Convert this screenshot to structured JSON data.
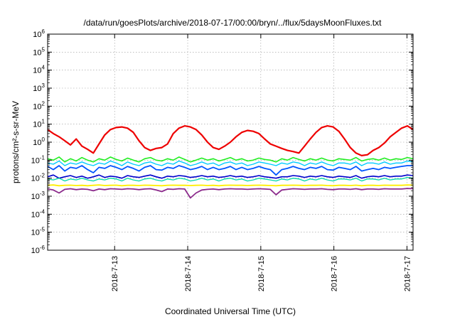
{
  "chart_data": {
    "type": "line",
    "title": "/data/run/goesPlots/archive/2018-07-17/00:00/bryn/../flux/5daysMoonFluxes.txt",
    "xlabel": "Coordinated Universal Time (UTC)",
    "ylabel": "protons/cm²-s-sr-MeV",
    "y_scale": "log",
    "ylim_exp": [
      -6,
      6
    ],
    "y_ticks": [
      {
        "base": "10",
        "exp": "6"
      },
      {
        "base": "10",
        "exp": "5"
      },
      {
        "base": "10",
        "exp": "4"
      },
      {
        "base": "10",
        "exp": "3"
      },
      {
        "base": "10",
        "exp": "2"
      },
      {
        "base": "10",
        "exp": "1"
      },
      {
        "base": "10",
        "exp": "0"
      },
      {
        "base": "10",
        "exp": "-1"
      },
      {
        "base": "10",
        "exp": "-2"
      },
      {
        "base": "10",
        "exp": "-3"
      },
      {
        "base": "10",
        "exp": "-4"
      },
      {
        "base": "10",
        "exp": "-5"
      },
      {
        "base": "10",
        "exp": "-6"
      }
    ],
    "x_range": [
      "2018-07-12T02:00",
      "2018-07-17T02:00"
    ],
    "x_ticks": [
      {
        "label": "2018-7-13",
        "at": "2018-07-13T00:00"
      },
      {
        "label": "2018-7-14",
        "at": "2018-07-14T00:00"
      },
      {
        "label": "2018-7-15",
        "at": "2018-07-15T00:00"
      },
      {
        "label": "2018-7-16",
        "at": "2018-07-16T00:00"
      },
      {
        "label": "2018-7-17",
        "at": "2018-07-17T00:00"
      }
    ],
    "grid": true,
    "series": [
      {
        "color": "#ee0000",
        "width": 2.2,
        "values": [
          5,
          3,
          2,
          1.2,
          0.7,
          1.5,
          0.6,
          0.4,
          0.25,
          0.8,
          2.5,
          5,
          6.5,
          7,
          6,
          3.5,
          1.2,
          0.5,
          0.35,
          0.45,
          0.5,
          0.8,
          3,
          6,
          8,
          7,
          5,
          2.5,
          1,
          0.5,
          0.4,
          0.6,
          1,
          2,
          3.5,
          4.5,
          4,
          3,
          1.5,
          0.8,
          0.6,
          0.45,
          0.35,
          0.3,
          0.25,
          0.6,
          1.5,
          3.5,
          6.5,
          8,
          7,
          4,
          1.5,
          0.5,
          0.25,
          0.18,
          0.2,
          0.35,
          0.5,
          0.9,
          2,
          3.5,
          6,
          8,
          5
        ]
      },
      {
        "color": "#22ee22",
        "width": 1.6,
        "values": [
          0.12,
          0.1,
          0.15,
          0.08,
          0.12,
          0.09,
          0.14,
          0.1,
          0.08,
          0.12,
          0.1,
          0.15,
          0.11,
          0.09,
          0.13,
          0.1,
          0.08,
          0.12,
          0.14,
          0.1,
          0.09,
          0.12,
          0.1,
          0.15,
          0.11,
          0.08,
          0.1,
          0.13,
          0.1,
          0.12,
          0.09,
          0.11,
          0.14,
          0.1,
          0.12,
          0.09,
          0.1,
          0.13,
          0.11,
          0.1,
          0.08,
          0.12,
          0.1,
          0.14,
          0.11,
          0.09,
          0.12,
          0.1,
          0.13,
          0.1,
          0.09,
          0.12,
          0.11,
          0.1,
          0.14,
          0.09,
          0.11,
          0.12,
          0.1,
          0.13,
          0.1,
          0.12,
          0.11,
          0.14,
          0.12
        ]
      },
      {
        "color": "#00ccff",
        "width": 1.4,
        "values": [
          0.07,
          0.06,
          0.09,
          0.05,
          0.07,
          0.06,
          0.08,
          0.06,
          0.05,
          0.07,
          0.06,
          0.09,
          0.07,
          0.05,
          0.08,
          0.06,
          0.05,
          0.07,
          0.08,
          0.06,
          0.05,
          0.07,
          0.06,
          0.09,
          0.07,
          0.05,
          0.06,
          0.08,
          0.06,
          0.07,
          0.05,
          0.07,
          0.08,
          0.06,
          0.07,
          0.05,
          0.06,
          0.08,
          0.07,
          0.06,
          0.05,
          0.07,
          0.06,
          0.08,
          0.07,
          0.05,
          0.07,
          0.06,
          0.08,
          0.06,
          0.05,
          0.07,
          0.07,
          0.06,
          0.08,
          0.05,
          0.07,
          0.07,
          0.06,
          0.08,
          0.06,
          0.07,
          0.07,
          0.09,
          0.08
        ]
      },
      {
        "color": "#0055ff",
        "width": 1.8,
        "values": [
          0.045,
          0.03,
          0.05,
          0.025,
          0.04,
          0.035,
          0.05,
          0.03,
          0.02,
          0.04,
          0.035,
          0.05,
          0.04,
          0.03,
          0.045,
          0.035,
          0.025,
          0.04,
          0.05,
          0.03,
          0.028,
          0.04,
          0.035,
          0.05,
          0.04,
          0.03,
          0.035,
          0.045,
          0.03,
          0.04,
          0.03,
          0.035,
          0.045,
          0.03,
          0.04,
          0.03,
          0.035,
          0.045,
          0.035,
          0.03,
          0.015,
          0.03,
          0.035,
          0.045,
          0.035,
          0.03,
          0.04,
          0.035,
          0.045,
          0.03,
          0.028,
          0.04,
          0.035,
          0.03,
          0.045,
          0.025,
          0.03,
          0.035,
          0.03,
          0.04,
          0.035,
          0.04,
          0.045,
          0.05,
          0.05
        ]
      },
      {
        "color": "#0000cc",
        "width": 1.6,
        "values": [
          0.012,
          0.015,
          0.01,
          0.012,
          0.014,
          0.011,
          0.013,
          0.01,
          0.012,
          0.015,
          0.011,
          0.013,
          0.012,
          0.01,
          0.014,
          0.012,
          0.011,
          0.013,
          0.015,
          0.012,
          0.01,
          0.013,
          0.012,
          0.014,
          0.013,
          0.011,
          0.012,
          0.014,
          0.012,
          0.013,
          0.011,
          0.012,
          0.014,
          0.012,
          0.013,
          0.011,
          0.012,
          0.014,
          0.012,
          0.011,
          0.01,
          0.012,
          0.012,
          0.014,
          0.013,
          0.011,
          0.013,
          0.012,
          0.014,
          0.012,
          0.011,
          0.013,
          0.012,
          0.011,
          0.014,
          0.01,
          0.012,
          0.013,
          0.012,
          0.014,
          0.012,
          0.013,
          0.013,
          0.015,
          0.014
        ]
      },
      {
        "color": "#00d8a8",
        "width": 1.3,
        "values": [
          0.009,
          0.008,
          0.01,
          0.007,
          0.009,
          0.008,
          0.01,
          0.008,
          0.007,
          0.009,
          0.008,
          0.01,
          0.009,
          0.007,
          0.01,
          0.008,
          0.007,
          0.009,
          0.01,
          0.008,
          0.007,
          0.009,
          0.008,
          0.01,
          0.009,
          0.007,
          0.008,
          0.01,
          0.008,
          0.009,
          0.007,
          0.009,
          0.01,
          0.008,
          0.009,
          0.007,
          0.008,
          0.01,
          0.009,
          0.008,
          0.007,
          0.009,
          0.008,
          0.01,
          0.009,
          0.007,
          0.009,
          0.008,
          0.01,
          0.008,
          0.007,
          0.009,
          0.009,
          0.008,
          0.01,
          0.007,
          0.009,
          0.009,
          0.008,
          0.01,
          0.008,
          0.009,
          0.009,
          0.011,
          0.01
        ]
      },
      {
        "color": "#ffee00",
        "width": 1.8,
        "values": [
          0.004,
          0.0042,
          0.0038,
          0.004,
          0.0041,
          0.0039,
          0.004,
          0.0038,
          0.004,
          0.0042,
          0.0039,
          0.004,
          0.0041,
          0.0038,
          0.004,
          0.004,
          0.0039,
          0.0041,
          0.004,
          0.0039,
          0.0038,
          0.004,
          0.0041,
          0.004,
          0.004,
          0.0039,
          0.004,
          0.0041,
          0.0039,
          0.004,
          0.0038,
          0.004,
          0.0041,
          0.004,
          0.004,
          0.0039,
          0.004,
          0.0041,
          0.004,
          0.0039,
          0.0038,
          0.004,
          0.004,
          0.0041,
          0.004,
          0.0039,
          0.004,
          0.004,
          0.0041,
          0.0039,
          0.0038,
          0.004,
          0.004,
          0.0039,
          0.0041,
          0.0038,
          0.004,
          0.004,
          0.0039,
          0.0041,
          0.004,
          0.004,
          0.004,
          0.0042,
          0.0041
        ]
      },
      {
        "color": "#8b2a8b",
        "width": 1.8,
        "values": [
          0.0025,
          0.0022,
          0.0015,
          0.0024,
          0.0026,
          0.0023,
          0.0025,
          0.0024,
          0.002,
          0.0025,
          0.0023,
          0.0026,
          0.0025,
          0.0024,
          0.0026,
          0.0025,
          0.0023,
          0.0025,
          0.0026,
          0.0022,
          0.0018,
          0.0025,
          0.0024,
          0.0026,
          0.0025,
          0.0008,
          0.0015,
          0.0022,
          0.0024,
          0.0025,
          0.0023,
          0.0025,
          0.0026,
          0.0025,
          0.0025,
          0.0024,
          0.0025,
          0.0026,
          0.0025,
          0.0024,
          0.0012,
          0.0022,
          0.0024,
          0.0026,
          0.0025,
          0.0024,
          0.0025,
          0.0025,
          0.0026,
          0.0024,
          0.0023,
          0.0025,
          0.0025,
          0.0024,
          0.0026,
          0.0023,
          0.0025,
          0.0025,
          0.0024,
          0.0026,
          0.0025,
          0.0025,
          0.0025,
          0.0027,
          0.0026
        ]
      }
    ]
  }
}
